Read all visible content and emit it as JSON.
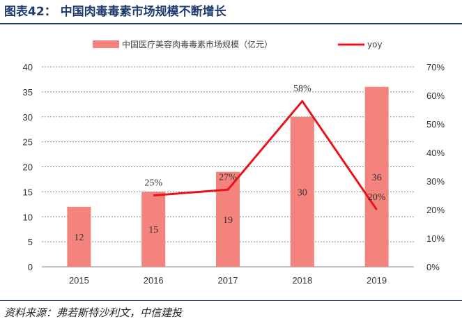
{
  "header": {
    "title": "图表42： 中国肉毒毒素市场规模不断增长"
  },
  "footer": {
    "source": "资料来源：弗若斯特沙利文，中信建投"
  },
  "colors": {
    "bar": "#f4837d",
    "line": "#e8141b",
    "grid": "#8a8a8a",
    "title": "#1e3a6e"
  },
  "chart_data": {
    "type": "bar",
    "title": "",
    "categories": [
      "2015",
      "2016",
      "2017",
      "2018",
      "2019"
    ],
    "series": [
      {
        "name": "中国医疗美容肉毒毒素市场规模（亿元）",
        "type": "bar",
        "axis": "left",
        "values": [
          12,
          15,
          19,
          30,
          36
        ],
        "labels": [
          "12",
          "15",
          "19",
          "30",
          "36"
        ]
      },
      {
        "name": "yoy",
        "type": "line",
        "axis": "right",
        "values": [
          null,
          25,
          27,
          58,
          20
        ],
        "labels": [
          "",
          "25%",
          "27%",
          "58%",
          "20%"
        ]
      }
    ],
    "y_left": {
      "min": 0,
      "max": 40,
      "step": 5,
      "ticks": [
        "0",
        "5",
        "10",
        "15",
        "20",
        "25",
        "30",
        "35",
        "40"
      ]
    },
    "y_right": {
      "min": 0,
      "max": 70,
      "step": 10,
      "ticks": [
        "0%",
        "10%",
        "20%",
        "30%",
        "40%",
        "50%",
        "60%",
        "70%"
      ]
    },
    "grid": true,
    "legend_position": "top"
  }
}
